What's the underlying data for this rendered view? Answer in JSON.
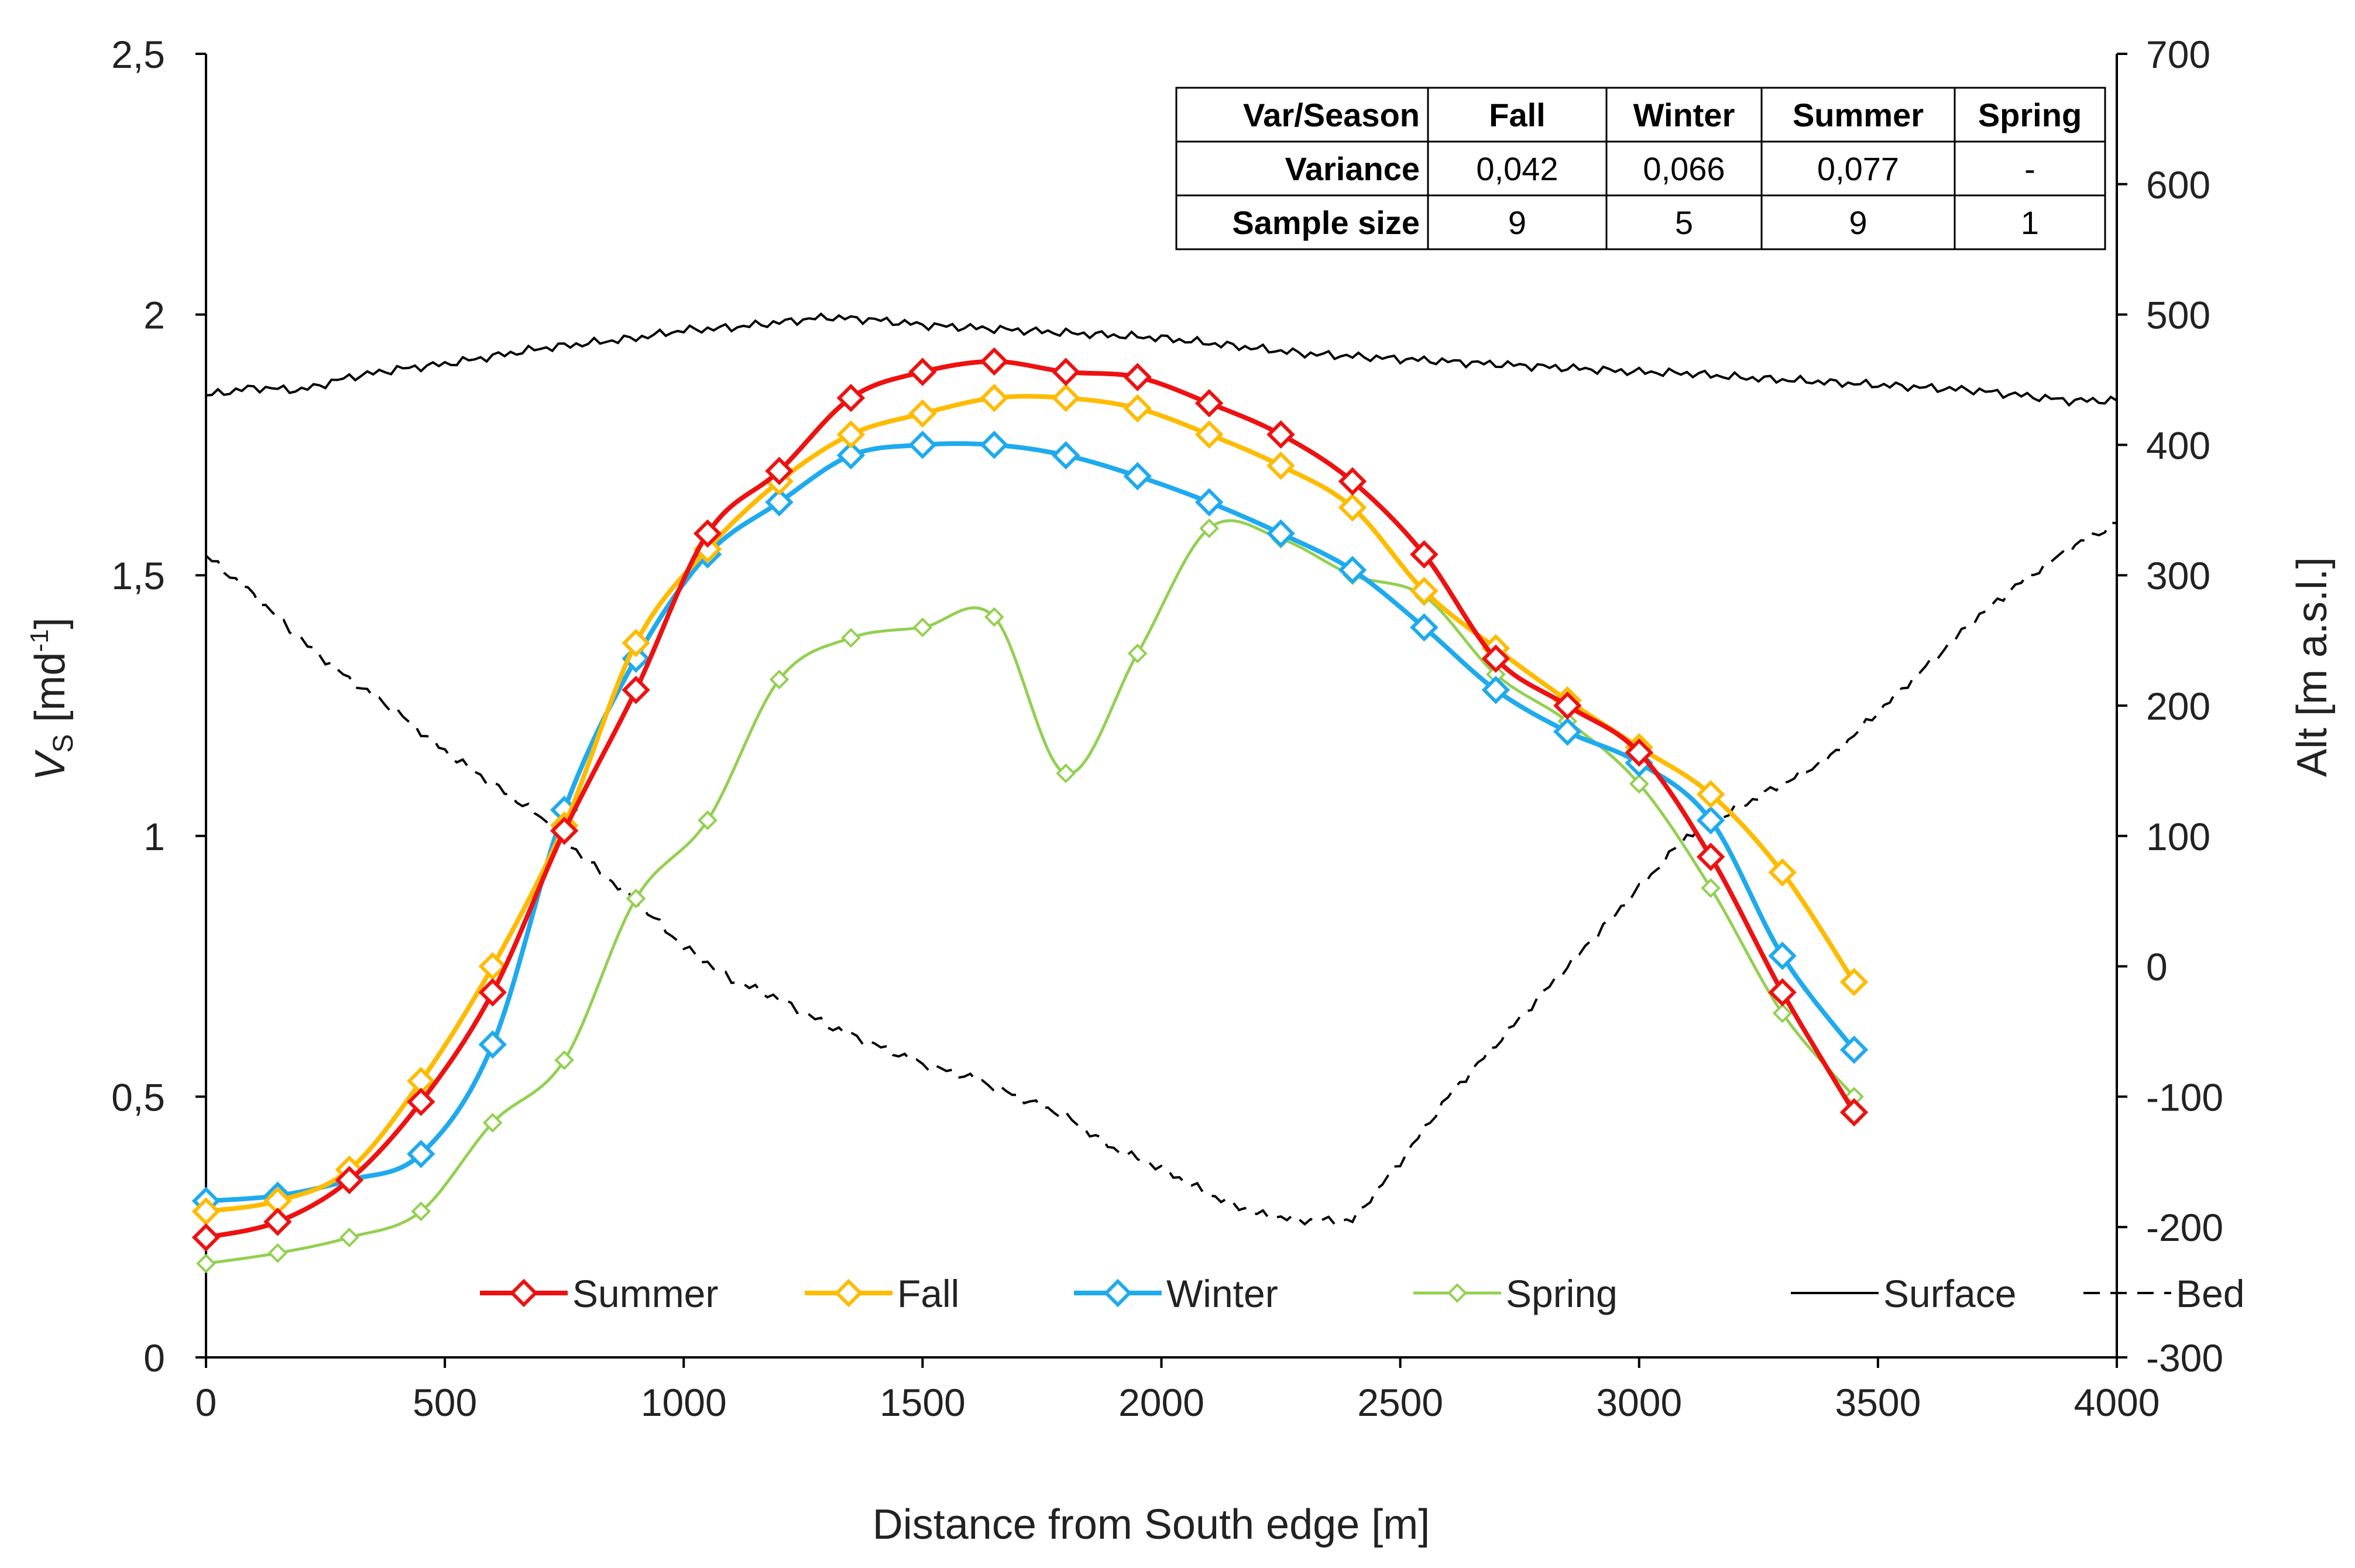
{
  "chart_data": {
    "type": "line",
    "xlabel": "Distance from South edge [m]",
    "ylabel": "V",
    "ylabel_sub": "S",
    "ylabel_unit_pre": " [md",
    "ylabel_unit_sup": "-1",
    "ylabel_unit_post": "]",
    "y2label": "Alt [m a.s.l.]",
    "xlim": [
      0,
      4000
    ],
    "ylim": [
      0,
      2.5
    ],
    "y2lim": [
      -300,
      700
    ],
    "x_ticks": [
      "0",
      "500",
      "1000",
      "1500",
      "2000",
      "2500",
      "3000",
      "3500",
      "4000"
    ],
    "y_ticks": [
      "0",
      "0,5",
      "1",
      "1,5",
      "2",
      "2,5"
    ],
    "y2_ticks": [
      "-300",
      "-200",
      "-100",
      "0",
      "100",
      "200",
      "300",
      "400",
      "500",
      "600",
      "700"
    ],
    "colors": {
      "Summer": "#ee1111",
      "Fall": "#ffbb00",
      "Winter": "#1eaaee",
      "Spring": "#92d050",
      "Surface": "#000000",
      "Bed": "#000000"
    },
    "x": [
      0,
      150,
      300,
      450,
      600,
      750,
      900,
      1050,
      1200,
      1350,
      1500,
      1650,
      1800,
      1950,
      2100,
      2250,
      2400,
      2550,
      2700,
      2850,
      3000,
      3150,
      3300,
      3450
    ],
    "series": [
      {
        "name": "Summer",
        "axis": "left",
        "marker": true,
        "values": [
          0.23,
          0.26,
          0.34,
          0.49,
          0.7,
          1.01,
          1.28,
          1.58,
          1.7,
          1.84,
          1.89,
          1.91,
          1.89,
          1.88,
          1.83,
          1.77,
          1.68,
          1.54,
          1.34,
          1.25,
          1.16,
          0.96,
          0.7,
          0.47
        ]
      },
      {
        "name": "Fall",
        "axis": "left",
        "marker": true,
        "values": [
          0.28,
          0.3,
          0.36,
          0.53,
          0.75,
          1.02,
          1.37,
          1.55,
          1.68,
          1.77,
          1.81,
          1.84,
          1.84,
          1.82,
          1.77,
          1.71,
          1.63,
          1.47,
          1.36,
          1.26,
          1.17,
          1.08,
          0.93,
          0.72
        ]
      },
      {
        "name": "Winter",
        "axis": "left",
        "marker": true,
        "values": [
          0.3,
          0.31,
          0.34,
          0.39,
          0.6,
          1.05,
          1.34,
          1.54,
          1.64,
          1.73,
          1.75,
          1.75,
          1.73,
          1.69,
          1.64,
          1.58,
          1.51,
          1.4,
          1.28,
          1.2,
          1.14,
          1.03,
          0.77,
          0.59
        ]
      },
      {
        "name": "Spring",
        "axis": "left",
        "marker": true,
        "values": [
          0.18,
          0.2,
          0.23,
          0.28,
          0.45,
          0.57,
          0.88,
          1.03,
          1.3,
          1.38,
          1.4,
          1.42,
          1.12,
          1.35,
          1.59,
          1.57,
          1.5,
          1.46,
          1.31,
          1.22,
          1.1,
          0.9,
          0.66,
          0.5
        ]
      },
      {
        "name": "Surface",
        "axis": "right",
        "marker": false,
        "x": [
          0,
          100,
          200,
          300,
          400,
          500,
          600,
          700,
          800,
          900,
          1000,
          1100,
          1200,
          1300,
          1400,
          1500,
          1600,
          1700,
          1800,
          1900,
          2000,
          2100,
          2200,
          2300,
          2400,
          2500,
          2600,
          2700,
          2800,
          2900,
          3000,
          3100,
          3200,
          3300,
          3400,
          3500,
          3600,
          3700,
          3800,
          3900,
          4000
        ],
        "values": [
          438,
          444,
          442,
          452,
          458,
          462,
          468,
          474,
          478,
          482,
          488,
          490,
          494,
          498,
          496,
          492,
          490,
          488,
          486,
          484,
          482,
          478,
          474,
          470,
          468,
          466,
          464,
          462,
          460,
          458,
          456,
          455,
          452,
          450,
          448,
          446,
          444,
          442,
          438,
          434,
          434
        ]
      },
      {
        "name": "Bed",
        "axis": "right",
        "marker": false,
        "dashed": true,
        "x": [
          0,
          100,
          200,
          300,
          400,
          500,
          600,
          700,
          800,
          900,
          1000,
          1100,
          1200,
          1300,
          1400,
          1500,
          1600,
          1700,
          1800,
          1900,
          2000,
          2100,
          2200,
          2300,
          2400,
          2500,
          2600,
          2700,
          2800,
          2900,
          3000,
          3100,
          3200,
          3300,
          3400,
          3500,
          3600,
          3700,
          3800,
          3900,
          4000
        ],
        "values": [
          315,
          285,
          250,
          220,
          195,
          165,
          140,
          115,
          80,
          50,
          15,
          -10,
          -25,
          -45,
          -60,
          -75,
          -85,
          -100,
          -115,
          -140,
          -155,
          -175,
          -190,
          -195,
          -195,
          -150,
          -100,
          -60,
          -20,
          20,
          60,
          100,
          120,
          140,
          160,
          195,
          230,
          265,
          295,
          320,
          340
        ]
      }
    ],
    "legend": [
      "Summer",
      "Fall",
      "Winter",
      "Spring",
      "Surface",
      "Bed"
    ],
    "legend_position": "bottom-center",
    "grid": false
  },
  "stats_table": {
    "header": [
      "Var/Season",
      "Fall",
      "Winter",
      "Summer",
      "Spring"
    ],
    "rows": [
      [
        "Variance",
        "0,042",
        "0,066",
        "0,077",
        "-"
      ],
      [
        "Sample size",
        "9",
        "5",
        "9",
        "1"
      ]
    ]
  }
}
